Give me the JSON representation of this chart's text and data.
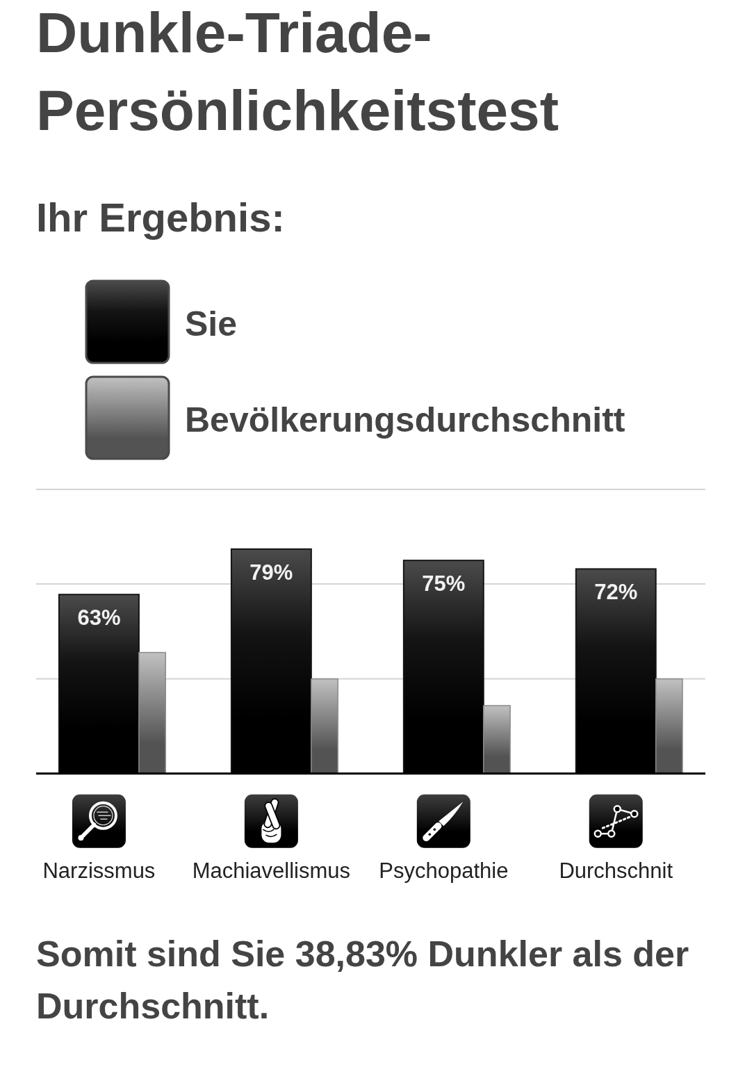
{
  "chart_data": {
    "type": "bar",
    "title": "Dunkle-Triade-Persönlichkeitstest",
    "subtitle": "Ihr Ergebnis:",
    "categories": [
      "Narzissmus",
      "Machiavellismus",
      "Psychopathie",
      "Durchschnit"
    ],
    "series": [
      {
        "name": "Sie",
        "color": "#141414",
        "values": [
          63,
          79,
          75,
          72
        ],
        "value_labels": [
          "63%",
          "79%",
          "75%",
          "72%"
        ]
      },
      {
        "name": "Bevölkerungsdurchschnitt",
        "color": "#8a8a8a",
        "values": [
          42.6,
          33.3,
          23.9,
          33.3
        ]
      }
    ],
    "ylim": [
      0,
      100
    ],
    "yticks": [
      {
        "value": 33.3,
        "label": null
      },
      {
        "value": 66.7,
        "label": null
      },
      {
        "value": 100,
        "label": null
      }
    ],
    "grid": "y",
    "legend": "top left",
    "tick_labels": "x",
    "annotations": [
      "Somit sind Sie 38,83% Dunkler als der Durchschnitt."
    ]
  }
}
